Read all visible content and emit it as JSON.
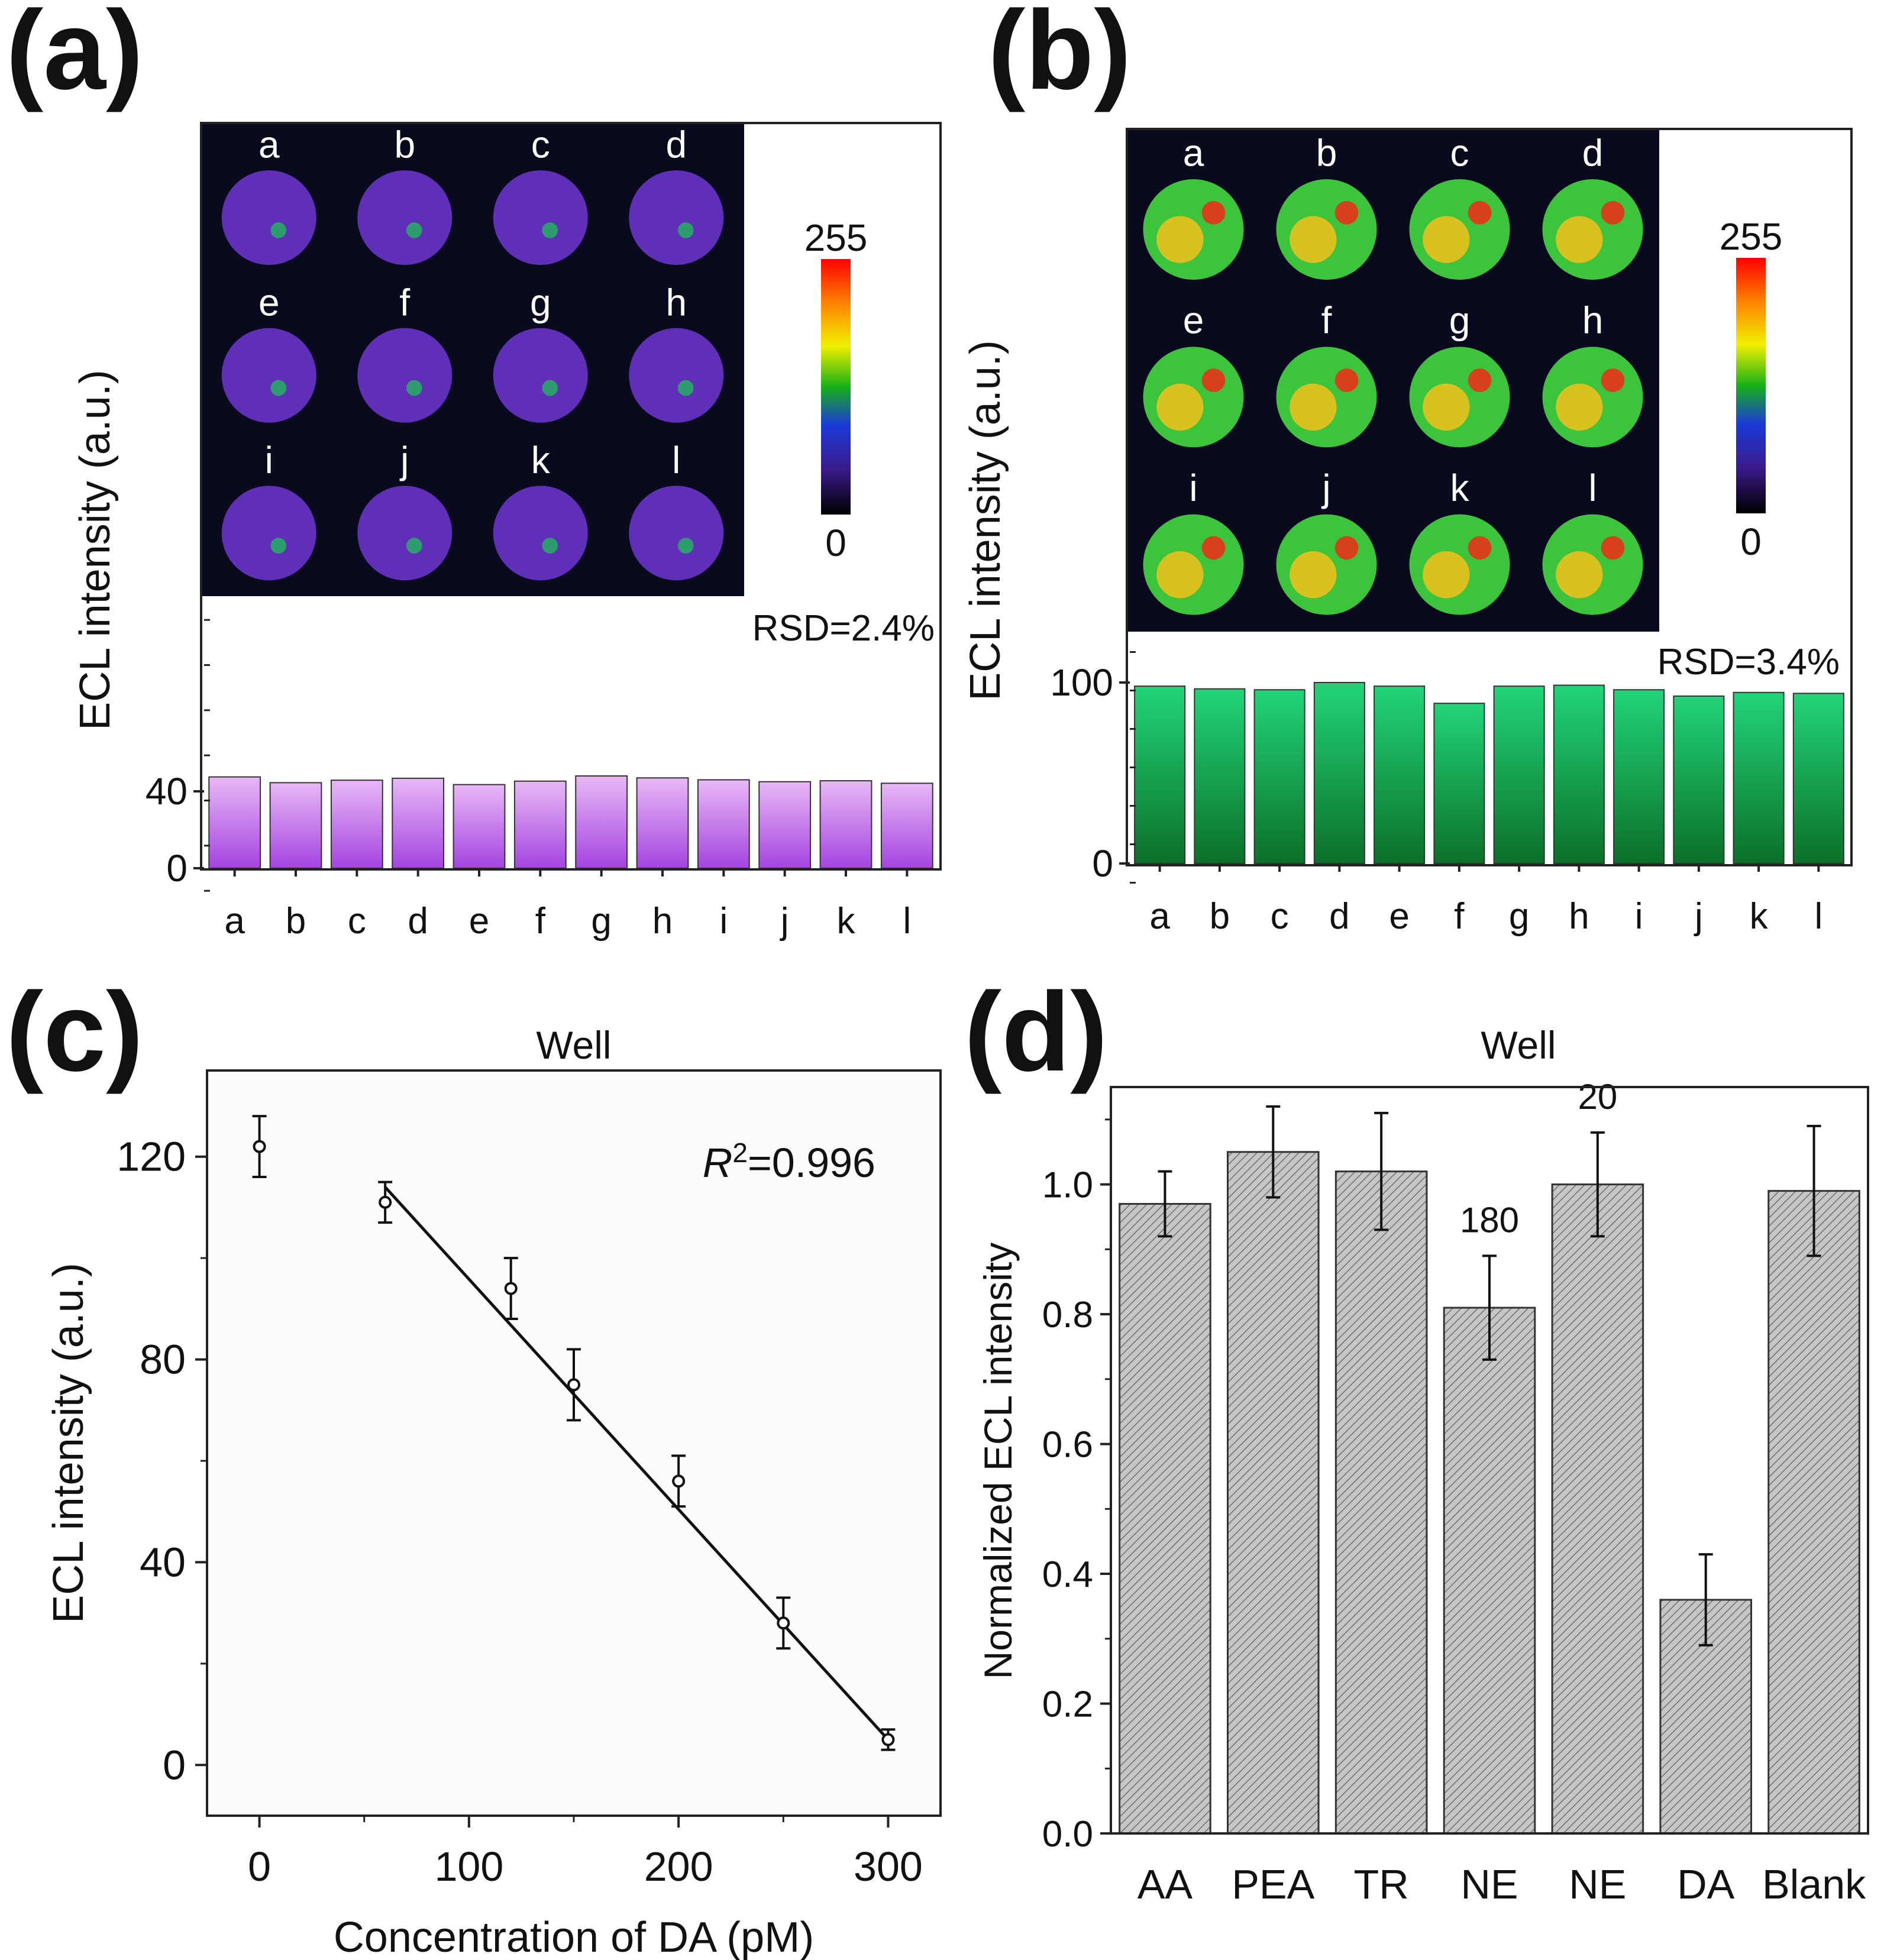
{
  "panels": {
    "a": {
      "label": "(a)",
      "chart_data": {
        "type": "bar",
        "categories": [
          "a",
          "b",
          "c",
          "d",
          "e",
          "f",
          "g",
          "h",
          "i",
          "j",
          "k",
          "l"
        ],
        "values": [
          47.5,
          44.5,
          45.8,
          46.8,
          43.5,
          45.3,
          48.0,
          47.0,
          46.0,
          45.0,
          45.5,
          44.2
        ],
        "ylabel": "ECL intensity (a.u.)",
        "yticks": [
          0,
          40
        ],
        "ylim": [
          0,
          145
        ],
        "annotation": "RSD=2.4%",
        "bar_gradient": [
          "#e8b8f6",
          "#a444e0"
        ],
        "inset": {
          "labels": [
            "a",
            "b",
            "c",
            "d",
            "e",
            "f",
            "g",
            "h",
            "i",
            "j",
            "k",
            "l"
          ],
          "colorbar_max": "255",
          "colorbar_min": "0",
          "spot_color": "#5f2fb8",
          "background": "#0a0a1e"
        }
      }
    },
    "b": {
      "label": "(b)",
      "chart_data": {
        "type": "bar",
        "categories": [
          "a",
          "b",
          "c",
          "d",
          "e",
          "f",
          "g",
          "h",
          "i",
          "j",
          "k",
          "l"
        ],
        "values": [
          98.0,
          96.5,
          96.0,
          100.0,
          98.0,
          88.5,
          98.0,
          98.5,
          96.0,
          92.5,
          94.5,
          94.0
        ],
        "ylabel": "ECL intensity (a.u.)",
        "yticks": [
          0,
          100
        ],
        "ylim": [
          0,
          400
        ],
        "annotation": "RSD=3.4%",
        "bar_gradient": [
          "#22d47a",
          "#0b7028"
        ],
        "inset": {
          "labels": [
            "a",
            "b",
            "c",
            "d",
            "e",
            "f",
            "g",
            "h",
            "i",
            "j",
            "k",
            "l"
          ],
          "colorbar_max": "255",
          "colorbar_min": "0",
          "spot_color": "#3cc43c",
          "background": "#0a0a1e"
        }
      }
    },
    "c": {
      "label": "(c)",
      "chart_data": {
        "type": "scatter",
        "title": "Well",
        "xlabel": "Concentration of DA (pM)",
        "ylabel": "ECL intensity (a.u.)",
        "x": [
          0,
          60,
          120,
          150,
          200,
          250,
          300
        ],
        "y": [
          122,
          111,
          94,
          75,
          56,
          28,
          5
        ],
        "yerr": [
          6,
          4,
          6,
          7,
          5,
          5,
          2
        ],
        "xlim": [
          -25,
          325
        ],
        "ylim": [
          -10,
          137
        ],
        "xticks": [
          0,
          100,
          200,
          300
        ],
        "yticks": [
          0,
          40,
          80,
          120
        ],
        "fit_line": {
          "x": [
            60,
            300
          ],
          "y": [
            114,
            5
          ]
        },
        "annotation_r": "R",
        "annotation_sup": "2",
        "annotation_val": "=0.996"
      }
    },
    "d": {
      "label": "(d)",
      "chart_data": {
        "type": "bar",
        "title": "Well",
        "ylabel": "Normalized ECL intensity",
        "categories": [
          "AA",
          "PEA",
          "TR",
          "NE",
          "NE",
          "DA",
          "Blank"
        ],
        "values": [
          0.97,
          1.05,
          1.02,
          0.81,
          1.0,
          0.36,
          0.99
        ],
        "errors": [
          0.05,
          0.07,
          0.09,
          0.08,
          0.08,
          0.07,
          0.1
        ],
        "annotations": [
          "",
          "",
          "",
          "180",
          "20",
          "",
          ""
        ],
        "ylim": [
          0,
          1.15
        ],
        "yticks": [
          "0.0",
          "0.2",
          "0.4",
          "0.6",
          "0.8",
          "1.0"
        ],
        "bar_color": "#b4b4b4"
      }
    }
  }
}
